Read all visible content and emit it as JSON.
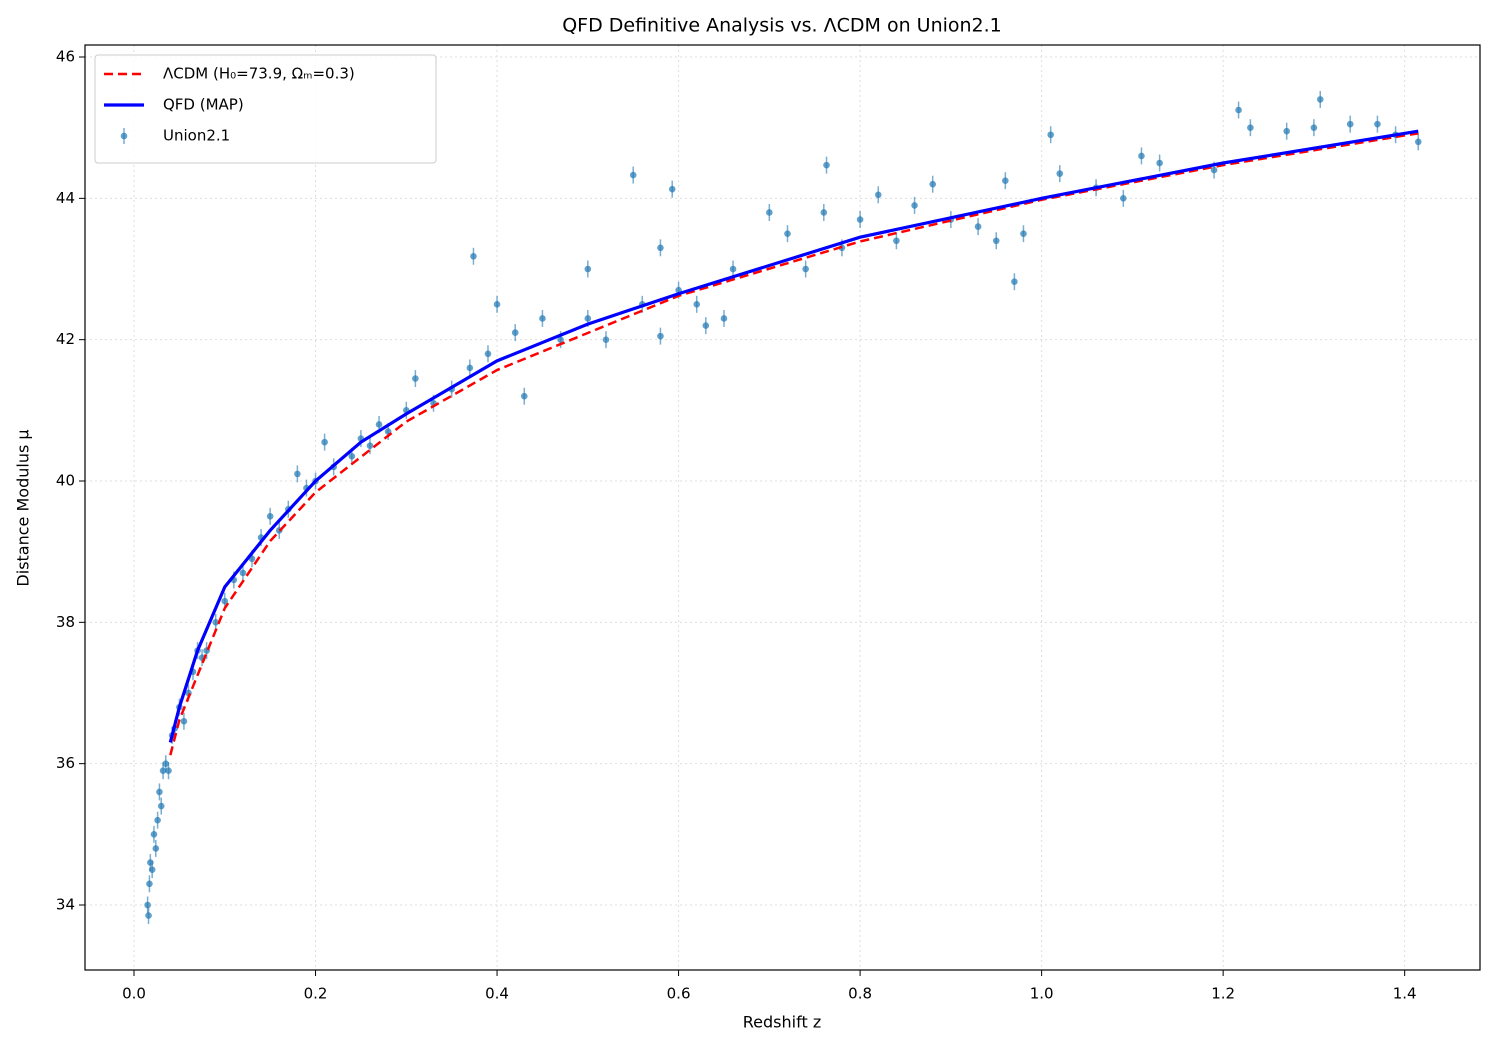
{
  "chart_data": {
    "type": "line",
    "title": "QFD Definitive Analysis vs. ΛCDM on Union2.1",
    "x_label": "Redshift z",
    "y_label": "Distance Modulus μ",
    "xlim": [
      -0.054,
      1.483
    ],
    "ylim": [
      33.08,
      46.17
    ],
    "xticks": [
      {
        "value": 0,
        "label": "0.0"
      },
      0.2,
      0.4,
      0.6,
      0.8,
      {
        "value": 1,
        "label": "1.0"
      },
      1.2,
      1.4
    ],
    "yticks": [
      34,
      36,
      38,
      40,
      42,
      44,
      46
    ],
    "grid": true,
    "legend": "upper left",
    "series": [
      {
        "name": "ΛCDM (H₀=73.9, Ωₘ=0.3)",
        "type": "line",
        "style": "dashed",
        "color": "#ff0000",
        "x": [
          0.04,
          0.05,
          0.1,
          0.15,
          0.2,
          0.3,
          0.4,
          0.6,
          0.8,
          1.0,
          1.2,
          1.4,
          1.415
        ],
        "values": [
          36.12,
          36.62,
          38.2,
          39.15,
          39.84,
          40.84,
          41.57,
          42.62,
          43.39,
          43.98,
          44.47,
          44.89,
          44.92
        ]
      },
      {
        "name": "QFD (MAP)",
        "type": "line",
        "style": "solid",
        "color": "#0000ff",
        "x": [
          0.04,
          0.05,
          0.07,
          0.1,
          0.15,
          0.2,
          0.25,
          0.3,
          0.4,
          0.5,
          0.6,
          0.8,
          1.0,
          1.2,
          1.415
        ],
        "values": [
          36.3,
          36.8,
          37.6,
          38.5,
          39.3,
          40.0,
          40.55,
          40.95,
          41.7,
          42.22,
          42.65,
          43.45,
          44.0,
          44.5,
          44.95
        ]
      },
      {
        "name": "Union2.1",
        "type": "errorbar",
        "color": "#1f77b4",
        "x": [
          0.015,
          0.016,
          0.017,
          0.018,
          0.02,
          0.022,
          0.024,
          0.026,
          0.028,
          0.03,
          0.032,
          0.035,
          0.038,
          0.042,
          0.045,
          0.05,
          0.055,
          0.06,
          0.065,
          0.07,
          0.075,
          0.08,
          0.09,
          0.1,
          0.11,
          0.12,
          0.13,
          0.14,
          0.15,
          0.16,
          0.17,
          0.18,
          0.19,
          0.2,
          0.21,
          0.22,
          0.24,
          0.25,
          0.26,
          0.27,
          0.28,
          0.3,
          0.31,
          0.33,
          0.35,
          0.37,
          0.374,
          0.39,
          0.4,
          0.42,
          0.43,
          0.45,
          0.47,
          0.5,
          0.5,
          0.52,
          0.55,
          0.56,
          0.58,
          0.58,
          0.593,
          0.6,
          0.62,
          0.63,
          0.65,
          0.66,
          0.7,
          0.72,
          0.74,
          0.76,
          0.763,
          0.78,
          0.8,
          0.82,
          0.84,
          0.86,
          0.88,
          0.9,
          0.93,
          0.95,
          0.96,
          0.97,
          0.98,
          1.01,
          1.02,
          1.06,
          1.09,
          1.11,
          1.13,
          1.19,
          1.217,
          1.23,
          1.27,
          1.3,
          1.307,
          1.34,
          1.37,
          1.39,
          1.415
        ],
        "values": [
          34.0,
          33.85,
          34.3,
          34.6,
          34.5,
          35.0,
          34.8,
          35.2,
          35.6,
          35.4,
          35.9,
          36.0,
          35.9,
          36.4,
          36.5,
          36.8,
          36.6,
          37.0,
          37.3,
          37.6,
          37.5,
          37.6,
          38.0,
          38.3,
          38.6,
          38.7,
          38.9,
          39.2,
          39.5,
          39.3,
          39.6,
          40.1,
          39.9,
          40.0,
          40.55,
          40.2,
          40.35,
          40.6,
          40.5,
          40.8,
          40.7,
          41.0,
          41.45,
          41.1,
          41.3,
          41.6,
          43.18,
          41.8,
          42.5,
          42.1,
          41.2,
          42.3,
          42.0,
          42.3,
          43.0,
          42.0,
          44.33,
          42.5,
          43.3,
          42.05,
          44.13,
          42.7,
          42.5,
          42.2,
          42.3,
          43.0,
          43.8,
          43.5,
          43.0,
          43.8,
          44.47,
          43.3,
          43.7,
          44.05,
          43.4,
          43.9,
          44.2,
          43.7,
          43.6,
          43.4,
          44.25,
          42.82,
          43.5,
          44.9,
          44.35,
          44.15,
          44.0,
          44.6,
          44.5,
          44.4,
          45.25,
          45.0,
          44.95,
          45.0,
          45.4,
          45.05,
          45.05,
          44.9,
          44.8
        ],
        "errors": [
          0.12,
          0.12,
          0.12,
          0.12,
          0.12,
          0.12,
          0.12,
          0.12,
          0.12,
          0.12,
          0.12,
          0.12,
          0.12,
          0.12,
          0.12,
          0.12,
          0.12,
          0.12,
          0.12,
          0.12,
          0.12,
          0.12,
          0.12,
          0.12,
          0.12,
          0.12,
          0.12,
          0.12,
          0.12,
          0.12,
          0.12,
          0.12,
          0.12,
          0.12,
          0.12,
          0.12,
          0.12,
          0.12,
          0.12,
          0.12,
          0.12,
          0.12,
          0.12,
          0.12,
          0.12,
          0.12,
          0.12,
          0.12,
          0.12,
          0.12,
          0.12,
          0.12,
          0.12,
          0.12,
          0.12,
          0.12,
          0.12,
          0.12,
          0.12,
          0.12,
          0.12,
          0.12,
          0.12,
          0.12,
          0.12,
          0.12,
          0.12,
          0.12,
          0.12,
          0.12,
          0.12,
          0.12,
          0.12,
          0.12,
          0.12,
          0.12,
          0.12,
          0.12,
          0.12,
          0.12,
          0.12,
          0.12,
          0.12,
          0.12,
          0.12,
          0.12,
          0.12,
          0.12,
          0.12,
          0.12,
          0.12,
          0.12,
          0.12,
          0.12,
          0.12,
          0.12,
          0.12,
          0.12,
          0.12
        ]
      }
    ]
  }
}
